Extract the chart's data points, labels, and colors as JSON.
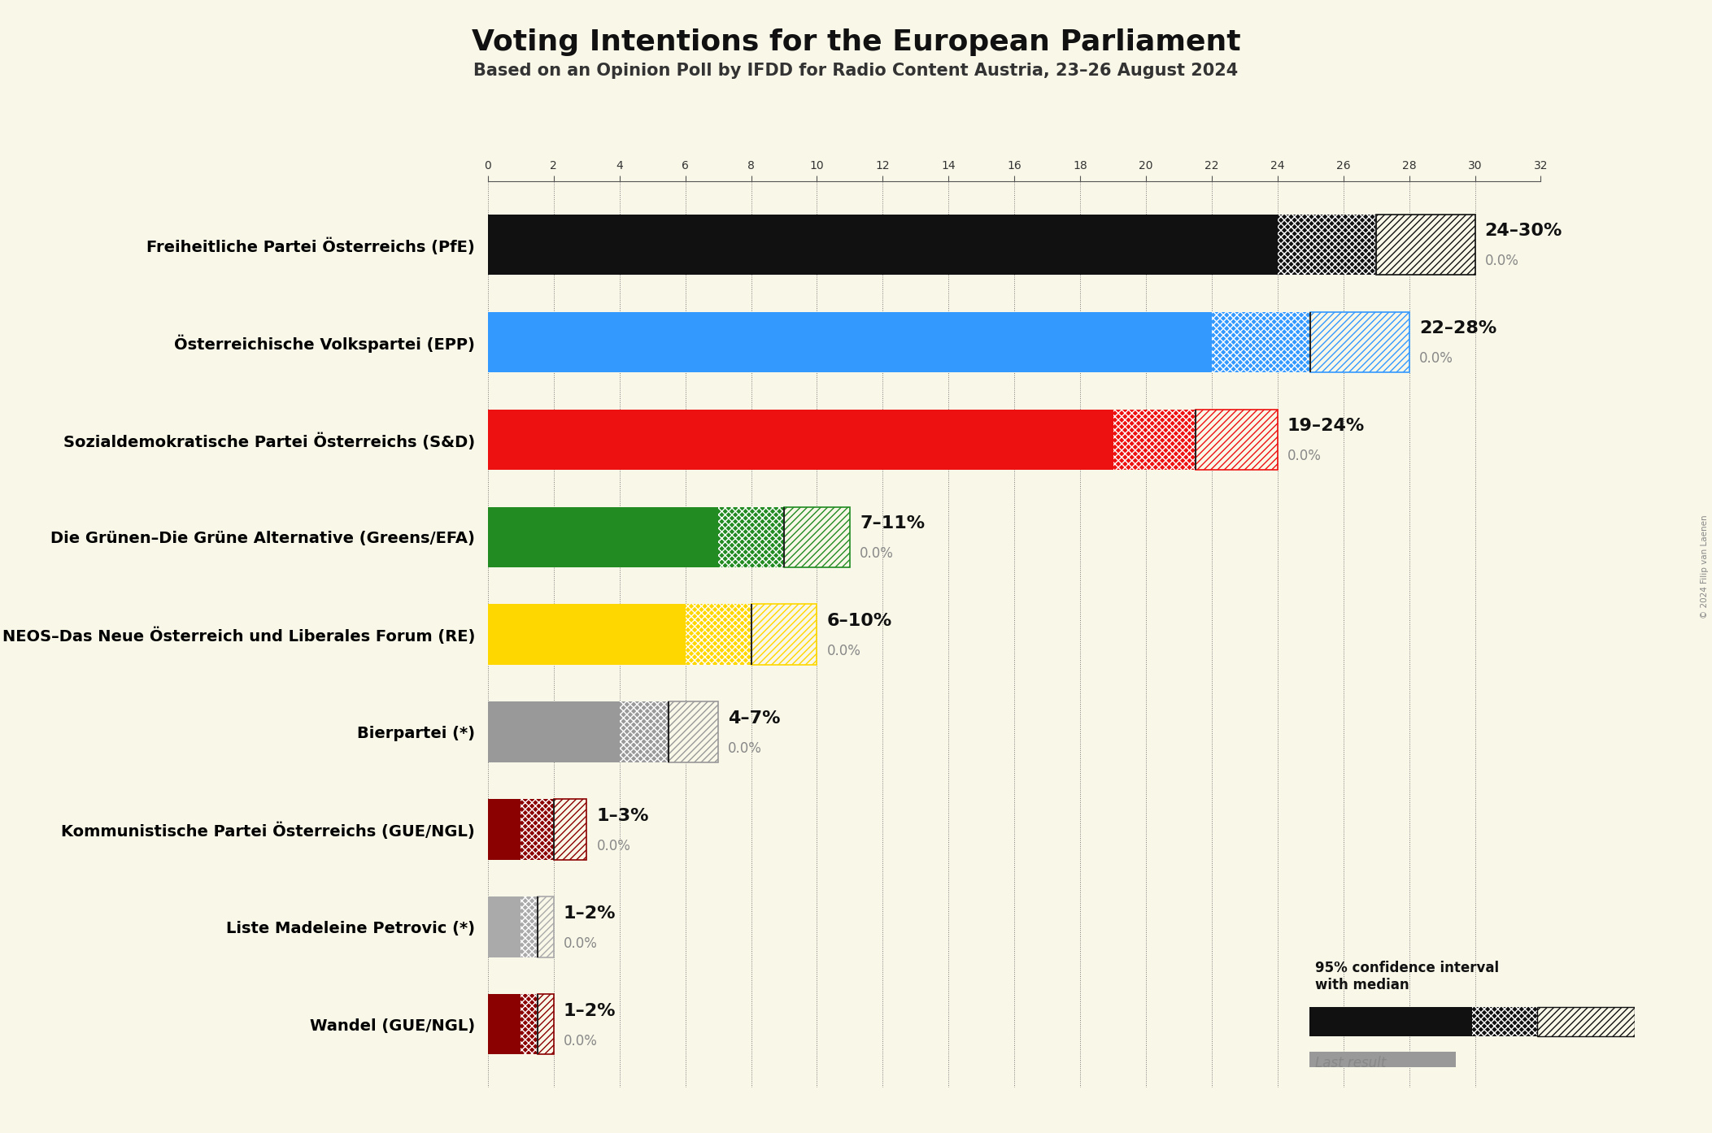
{
  "title": "Voting Intentions for the European Parliament",
  "subtitle": "Based on an Opinion Poll by IFDD for Radio Content Austria, 23–26 August 2024",
  "background_color": "#f9f7e8",
  "parties": [
    "Freiheitliche Partei Österreichs (PfE)",
    "Österreichische Volkspartei (EPP)",
    "Sozialdemokratische Partei Österreichs (S&D)",
    "Die Grünen–Die Grüne Alternative (Greens/EFA)",
    "NEOS–Das Neue Österreich und Liberales Forum (RE)",
    "Bierpartei (*)",
    "Kommunistische Partei Österreichs (GUE/NGL)",
    "Liste Madeleine Petrovic (*)",
    "Wandel (GUE/NGL)"
  ],
  "median_values": [
    27,
    25,
    21.5,
    9,
    8,
    5.5,
    2,
    1.5,
    1.5
  ],
  "low_values": [
    24,
    22,
    19,
    7,
    6,
    4,
    1,
    1,
    1
  ],
  "high_values": [
    30,
    28,
    24,
    11,
    10,
    7,
    3,
    2,
    2
  ],
  "bar_colors": [
    "#111111",
    "#3399ff",
    "#ee1111",
    "#228B22",
    "#FFD700",
    "#999999",
    "#8B0000",
    "#aaaaaa",
    "#8B0000"
  ],
  "label_ranges": [
    "24–30%",
    "22–28%",
    "19–24%",
    "7–11%",
    "6–10%",
    "4–7%",
    "1–3%",
    "1–2%",
    "1–2%"
  ],
  "label_last": [
    "0.0%",
    "0.0%",
    "0.0%",
    "0.0%",
    "0.0%",
    "0.0%",
    "0.0%",
    "0.0%",
    "0.0%"
  ],
  "x_max": 32,
  "x_ticks": [
    0,
    2,
    4,
    6,
    8,
    10,
    12,
    14,
    16,
    18,
    20,
    22,
    24,
    26,
    28,
    30,
    32
  ],
  "copyright": "© 2024 Filip van Laenen"
}
